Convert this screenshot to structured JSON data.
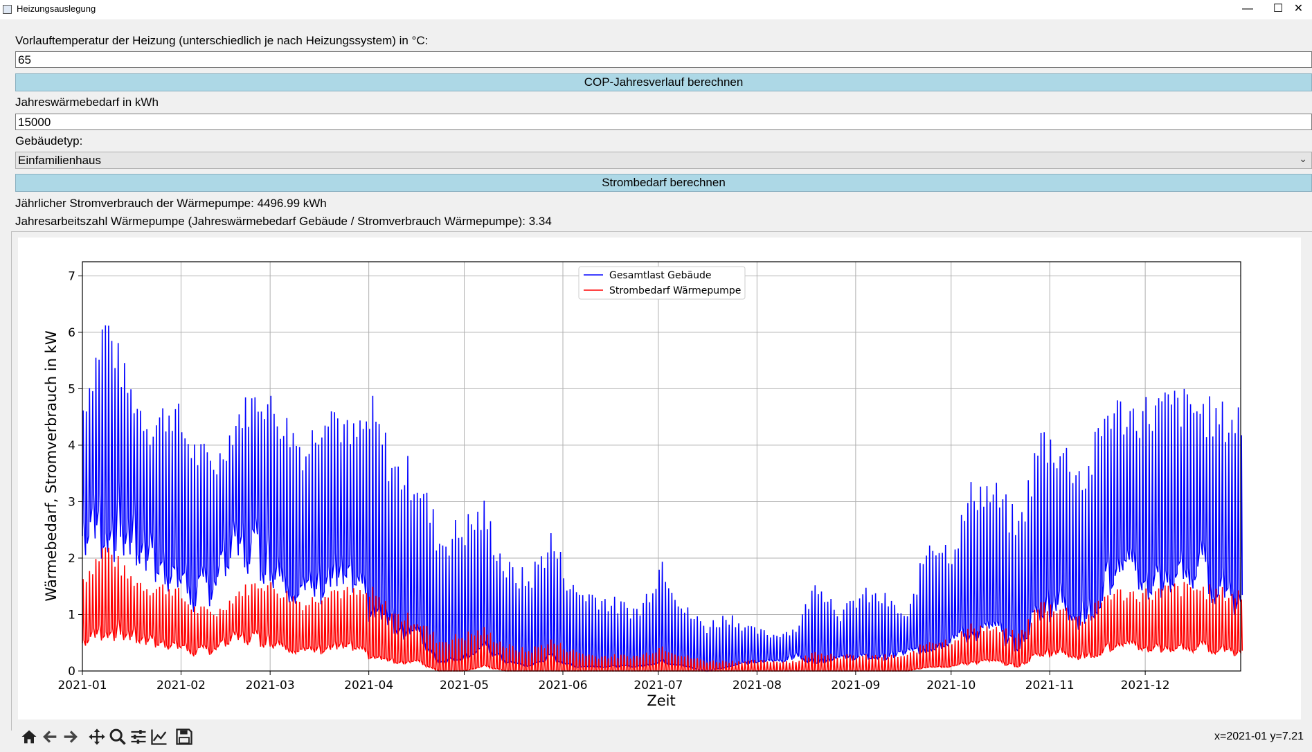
{
  "window": {
    "title": "Heizungsauslegung",
    "minimize_icon": "minimize-icon",
    "maximize_icon": "maximize-icon",
    "close_icon": "close-icon"
  },
  "form": {
    "flow_temp_label": "Vorlauftemperatur der Heizung (unterschiedlich je nach Heizungssystem) in °C:",
    "flow_temp_value": "65",
    "cop_button": "COP-Jahresverlauf berechnen",
    "heat_demand_label": "Jahreswärmebedarf in kWh",
    "heat_demand_value": "15000",
    "building_type_label": "Gebäudetyp:",
    "building_type_value": "Einfamilienhaus",
    "power_button": "Strombedarf berechnen",
    "result_power": "Jährlicher Stromverbrauch der Wärmepumpe: 4496.99 kWh",
    "result_spf": "Jahresarbeitszahl Wärmepumpe (Jahreswärmebedarf Gebäude / Stromverbrauch Wärmepumpe): 3.34"
  },
  "chart_data": {
    "type": "line",
    "xlabel": "Zeit",
    "ylabel": "Wärmebedarf, Stromverbrauch in kW",
    "x_ticks": [
      "2021-01",
      "2021-02",
      "2021-03",
      "2021-04",
      "2021-05",
      "2021-06",
      "2021-07",
      "2021-08",
      "2021-09",
      "2021-10",
      "2021-11",
      "2021-12"
    ],
    "xlim": [
      "2021-01-01",
      "2021-12-31"
    ],
    "ylim": [
      0,
      7.25
    ],
    "y_ticks": [
      0,
      1,
      2,
      3,
      4,
      5,
      6,
      7
    ],
    "grid": true,
    "legend_position": "top-center",
    "x": [
      "2021-01-01",
      "2021-01-08",
      "2021-01-15",
      "2021-01-22",
      "2021-01-29",
      "2021-02-05",
      "2021-02-12",
      "2021-02-19",
      "2021-02-26",
      "2021-03-05",
      "2021-03-12",
      "2021-03-19",
      "2021-03-26",
      "2021-04-02",
      "2021-04-09",
      "2021-04-16",
      "2021-04-23",
      "2021-04-30",
      "2021-05-07",
      "2021-05-14",
      "2021-05-21",
      "2021-05-28",
      "2021-06-04",
      "2021-06-11",
      "2021-06-18",
      "2021-06-25",
      "2021-07-02",
      "2021-07-09",
      "2021-07-16",
      "2021-07-23",
      "2021-07-30",
      "2021-08-06",
      "2021-08-13",
      "2021-08-20",
      "2021-08-27",
      "2021-09-03",
      "2021-09-10",
      "2021-09-17",
      "2021-09-24",
      "2021-10-01",
      "2021-10-08",
      "2021-10-15",
      "2021-10-22",
      "2021-10-29",
      "2021-11-05",
      "2021-11-12",
      "2021-11-19",
      "2021-11-26",
      "2021-12-03",
      "2021-12-10",
      "2021-12-17",
      "2021-12-24",
      "2021-12-31"
    ],
    "series": [
      {
        "name": "Gesamtlast Gebäude",
        "color": "#0000ff",
        "peak": [
          4.9,
          6.6,
          5.3,
          4.6,
          5.0,
          4.2,
          3.9,
          4.8,
          5.2,
          4.7,
          4.2,
          5.2,
          4.4,
          4.9,
          3.9,
          3.8,
          2.6,
          2.8,
          3.1,
          2.0,
          1.8,
          2.6,
          1.6,
          1.5,
          1.3,
          1.2,
          2.2,
          1.2,
          0.9,
          1.1,
          0.8,
          0.7,
          0.8,
          1.8,
          1.1,
          1.5,
          1.4,
          1.0,
          2.6,
          2.3,
          3.6,
          3.4,
          2.8,
          4.5,
          4.2,
          3.7,
          5.0,
          4.9,
          5.0,
          5.1,
          5.0,
          4.8,
          4.9
        ],
        "base": [
          2.9,
          3.2,
          3.0,
          2.3,
          2.2,
          1.6,
          2.0,
          2.6,
          2.6,
          2.2,
          1.6,
          2.0,
          1.9,
          1.3,
          1.0,
          0.8,
          0.2,
          0.3,
          0.5,
          0.2,
          0.1,
          0.3,
          0.1,
          0.1,
          0.1,
          0.1,
          0.2,
          0.1,
          0.0,
          0.1,
          0.2,
          0.2,
          0.3,
          0.2,
          0.3,
          0.3,
          0.3,
          0.4,
          0.5,
          0.7,
          0.8,
          0.9,
          0.5,
          1.4,
          1.5,
          1.1,
          2.0,
          2.0,
          1.9,
          2.1,
          2.2,
          1.9,
          1.5
        ]
      },
      {
        "name": "Strombedarf Wärmepumpe",
        "color": "#ff0000",
        "peak": [
          1.8,
          2.4,
          1.8,
          1.6,
          1.6,
          1.2,
          1.1,
          1.5,
          1.7,
          1.5,
          1.3,
          1.6,
          1.5,
          1.5,
          1.1,
          1.0,
          0.6,
          0.7,
          0.8,
          0.5,
          0.4,
          0.6,
          0.4,
          0.3,
          0.3,
          0.3,
          0.5,
          0.3,
          0.2,
          0.2,
          0.2,
          0.2,
          0.2,
          0.4,
          0.3,
          0.3,
          0.3,
          0.3,
          0.6,
          0.6,
          0.9,
          0.8,
          0.7,
          1.3,
          1.2,
          1.0,
          1.5,
          1.5,
          1.5,
          1.6,
          1.6,
          1.5,
          1.5
        ],
        "base": [
          0.6,
          0.9,
          0.8,
          0.6,
          0.6,
          0.4,
          0.5,
          0.7,
          0.7,
          0.6,
          0.4,
          0.5,
          0.5,
          0.3,
          0.2,
          0.2,
          0.0,
          0.0,
          0.1,
          0.0,
          0.0,
          0.0,
          0.0,
          0.0,
          0.0,
          0.0,
          0.0,
          0.0,
          0.0,
          0.0,
          0.0,
          0.0,
          0.0,
          0.0,
          0.0,
          0.0,
          0.0,
          0.0,
          0.1,
          0.1,
          0.2,
          0.2,
          0.1,
          0.4,
          0.4,
          0.3,
          0.5,
          0.5,
          0.5,
          0.5,
          0.5,
          0.5,
          0.4
        ]
      }
    ]
  },
  "toolbar": {
    "icons": [
      "home-icon",
      "back-icon",
      "forward-icon",
      "pan-icon",
      "zoom-icon",
      "configure-subplots-icon",
      "edit-axis-icon",
      "save-icon"
    ]
  },
  "status": {
    "coords": "x=2021-01 y=7.21"
  }
}
